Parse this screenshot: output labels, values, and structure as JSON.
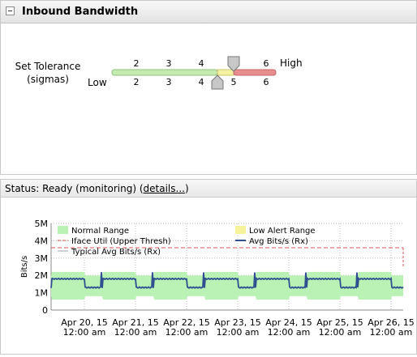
{
  "panel": {
    "title": "Inbound Bandwidth",
    "tolerance_label_line1": "Set Tolerance",
    "tolerance_label_line2": "(sigmas)",
    "low_label": "Low",
    "high_label": "High",
    "upper_ticks": [
      "2",
      "3",
      "4",
      "5",
      "6"
    ],
    "lower_ticks": [
      "2",
      "3",
      "4",
      "5",
      "6"
    ],
    "upper_handle_value": 4.5,
    "lower_handle_value": 4.5,
    "colors": {
      "normal": "#c5ebb0",
      "low_alert": "#f4f1a2",
      "high": "#e88e8e",
      "handle": "#c7c7c7"
    }
  },
  "status": {
    "prefix": "Status: Ready (monitoring) (",
    "link": "details...",
    "suffix": ")"
  },
  "chart_data": {
    "type": "area",
    "ylabel": "Bits/s",
    "y_ticks": [
      "0",
      "1M",
      "2M",
      "3M",
      "4M",
      "5M"
    ],
    "ylim": [
      0,
      5000000
    ],
    "x_ticks": [
      {
        "line1": "Apr 20, 15",
        "line2": "12:00 am"
      },
      {
        "line1": "Apr 21, 15",
        "line2": "12:00 am"
      },
      {
        "line1": "Apr 22, 15",
        "line2": "12:00 am"
      },
      {
        "line1": "Apr 23, 15",
        "line2": "12:00 am"
      },
      {
        "line1": "Apr 24, 15",
        "line2": "12:00 am"
      },
      {
        "line1": "Apr 25, 15",
        "line2": "12:00 am"
      },
      {
        "line1": "Apr 26, 15",
        "line2": "12:00 am"
      }
    ],
    "grid": true,
    "legend": [
      {
        "name": "Normal Range",
        "kind": "swatch",
        "color": "#b9f2b4"
      },
      {
        "name": "Low Alert Range",
        "kind": "swatch",
        "color": "#f7f39c"
      },
      {
        "name": "Iface Util (Upper Thresh)",
        "kind": "dash",
        "color": "#d9534f"
      },
      {
        "name": "Avg Bits/s (Rx)",
        "kind": "line",
        "color": "#2f4f8f"
      },
      {
        "name": "Typical Avg Bits/s (Rx)",
        "kind": "thin",
        "color": "#a0a0a0"
      }
    ],
    "series": [
      {
        "name": "Iface Util (Upper Thresh)",
        "value": 3600000
      },
      {
        "name": "Avg Bits/s (Rx)",
        "baseline": 1300000,
        "peak": 1800000,
        "spike": 2200000
      },
      {
        "name": "Normal Range",
        "low": 800000,
        "high": 2000000,
        "day_low": 600000,
        "day_high": 2200000
      }
    ]
  }
}
